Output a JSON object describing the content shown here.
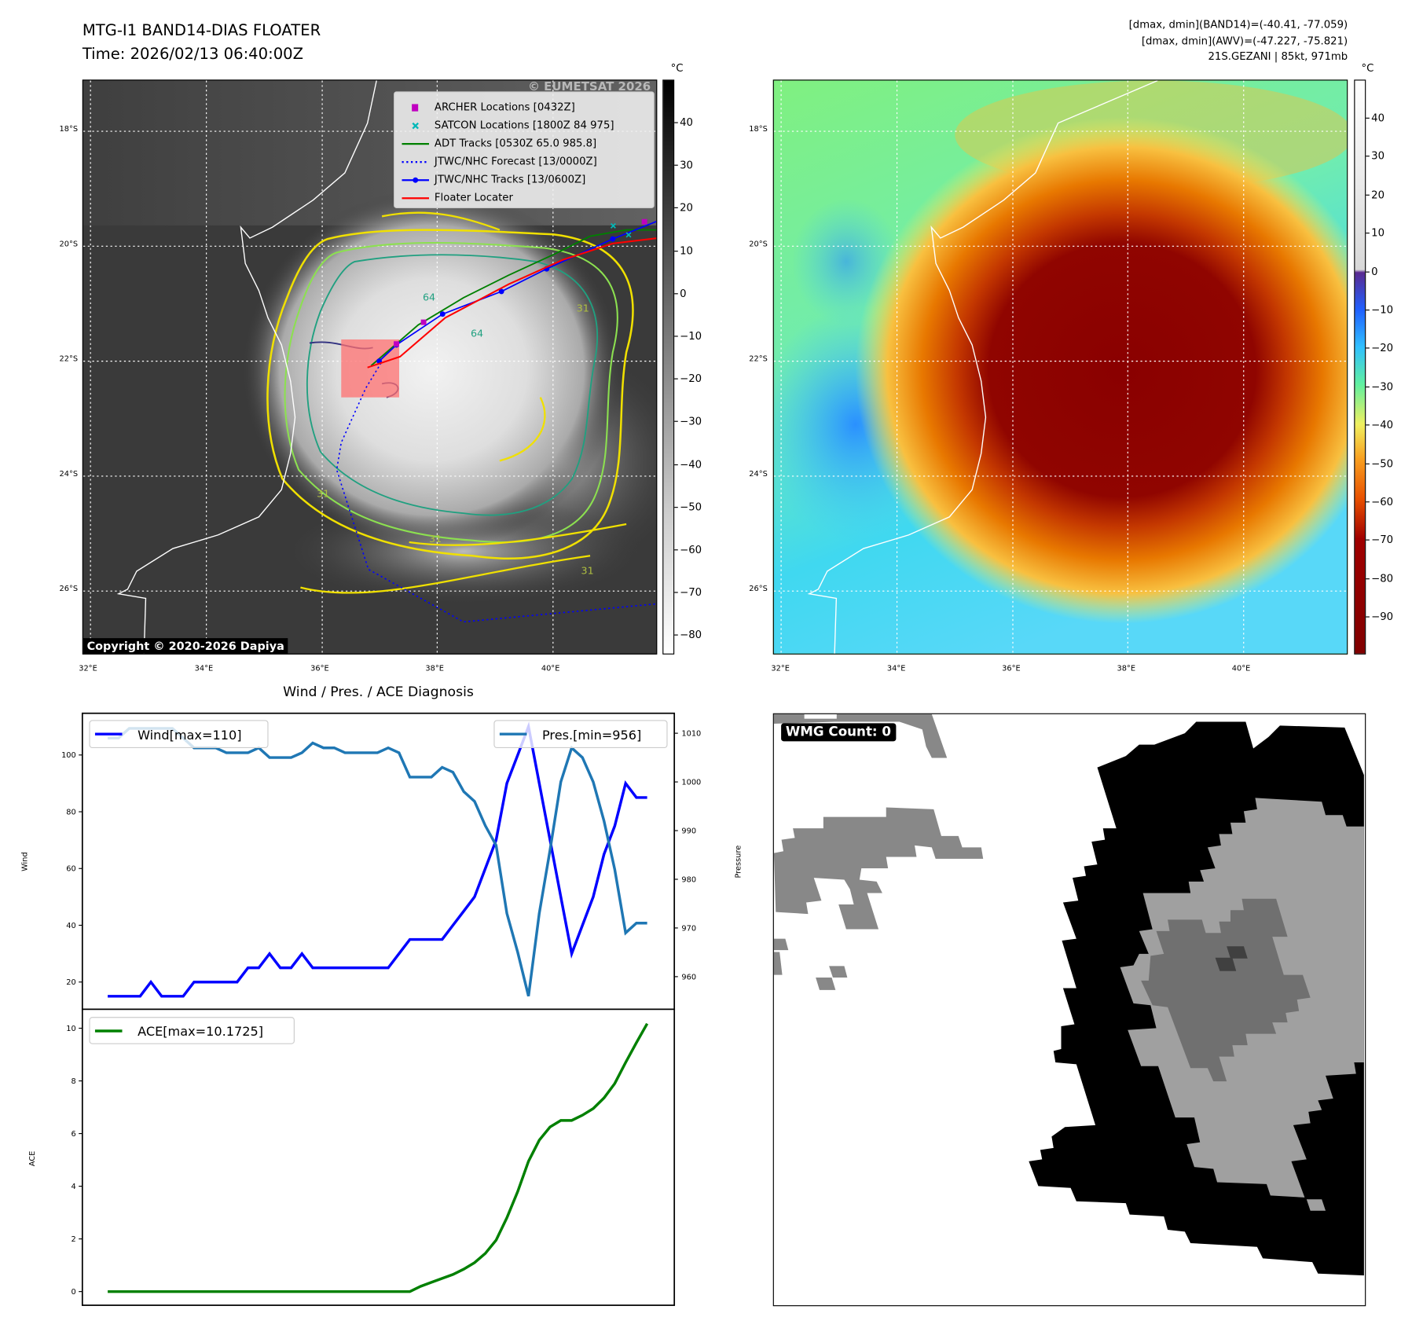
{
  "header": {
    "title": "MTG-I1 BAND14-DIAS FLOATER",
    "time": "Time: 2026/02/13 06:40:00Z",
    "info_line1": "[dmax, dmin](BAND14)=(-40.41, -77.059)",
    "info_line2": "[dmax, dmin](AWV)=(-47.227, -75.821)",
    "info_line3": "21S.GEZANI | 85kt, 971mb"
  },
  "map": {
    "lat_labels": [
      "18°S",
      "20°S",
      "22°S",
      "24°S",
      "26°S"
    ],
    "lon_labels": [
      "32°E",
      "34°E",
      "36°E",
      "38°E",
      "40°E"
    ],
    "unit": "°C",
    "watermark": "© EUMETSAT 2026",
    "copyright": "Copyright © 2020-2026 Dapiya",
    "contour_labels": [
      "64",
      "64",
      "31",
      "31",
      "31",
      "31"
    ],
    "legend": [
      {
        "label": "ARCHER Locations [0432Z]",
        "color": "#c000c0"
      },
      {
        "label": "SATCON Locations [1800Z 84 975]",
        "color": "#00b8b8"
      },
      {
        "label": "ADT Tracks [0530Z 65.0 985.8]",
        "color": "#008000"
      },
      {
        "label": "JTWC/NHC Forecast [13/0000Z]",
        "color": "#0000ff"
      },
      {
        "label": "JTWC/NHC Tracks [13/0600Z]",
        "color": "#0000ff"
      },
      {
        "label": "Floater Locater",
        "color": "#ff0000"
      }
    ],
    "left_colorbar_ticks": [
      "40",
      "30",
      "20",
      "10",
      "0",
      "−10",
      "−20",
      "−30",
      "−40",
      "−50",
      "−60",
      "−70",
      "−80"
    ],
    "right_colorbar_ticks": [
      "40",
      "30",
      "20",
      "10",
      "0",
      "−10",
      "−20",
      "−30",
      "−40",
      "−50",
      "−60",
      "−70",
      "−80",
      "−90"
    ]
  },
  "wmg": {
    "label": "WMG Count: 0"
  },
  "chart_data": [
    {
      "type": "line",
      "title": "Wind / Pres. / ACE Diagnosis",
      "ylabel": "Wind",
      "ylabel_right": "Pressure",
      "ylim": [
        10.4,
        114.7
      ],
      "ylim_right": [
        953.3,
        1014.1
      ],
      "yticks": [
        20,
        40,
        60,
        80,
        100
      ],
      "yticks_right": [
        960,
        970,
        980,
        990,
        1000,
        1010
      ],
      "series": [
        {
          "name": "Wind[max=110]",
          "color": "#0000ff",
          "axis": "left",
          "values": [
            15,
            15,
            15,
            15,
            20,
            15,
            15,
            15,
            20,
            20,
            20,
            20,
            20,
            25,
            25,
            30,
            25,
            25,
            30,
            25,
            25,
            25,
            25,
            25,
            25,
            25,
            25,
            30,
            35,
            35,
            35,
            35,
            40,
            45,
            50,
            60,
            70,
            90,
            100,
            110,
            90,
            70,
            50,
            30,
            40,
            50,
            65,
            75,
            90,
            85,
            85
          ]
        },
        {
          "name": "Pres.[min=956]",
          "color": "#1f77b4",
          "axis": "right",
          "values": [
            1009,
            1009,
            1011,
            1011,
            1011,
            1011,
            1011,
            1009,
            1007,
            1007,
            1007,
            1006,
            1006,
            1006,
            1007,
            1005,
            1005,
            1005,
            1006,
            1008,
            1007,
            1007,
            1006,
            1006,
            1006,
            1006,
            1007,
            1006,
            1001,
            1001,
            1001,
            1003,
            1002,
            998,
            996,
            991,
            987,
            973,
            965,
            956,
            973,
            986,
            1000,
            1007,
            1005,
            1000,
            992,
            982,
            969,
            971,
            971
          ]
        }
      ]
    },
    {
      "type": "line",
      "ylabel": "ACE",
      "ylim": [
        -0.52,
        10.72
      ],
      "yticks": [
        0,
        2,
        4,
        6,
        8,
        10
      ],
      "series": [
        {
          "name": "ACE[max=10.1725]",
          "color": "#008000",
          "values": [
            0,
            0,
            0,
            0,
            0,
            0,
            0,
            0,
            0,
            0,
            0,
            0,
            0,
            0,
            0,
            0,
            0,
            0,
            0,
            0,
            0,
            0,
            0,
            0,
            0,
            0,
            0,
            0,
            0,
            0.2,
            0.35,
            0.5,
            0.65,
            0.85,
            1.1,
            1.45,
            1.95,
            2.8,
            3.8,
            4.95,
            5.75,
            6.25,
            6.5,
            6.5,
            6.7,
            6.95,
            7.35,
            7.9,
            8.7,
            9.45,
            10.1725
          ]
        }
      ]
    }
  ]
}
